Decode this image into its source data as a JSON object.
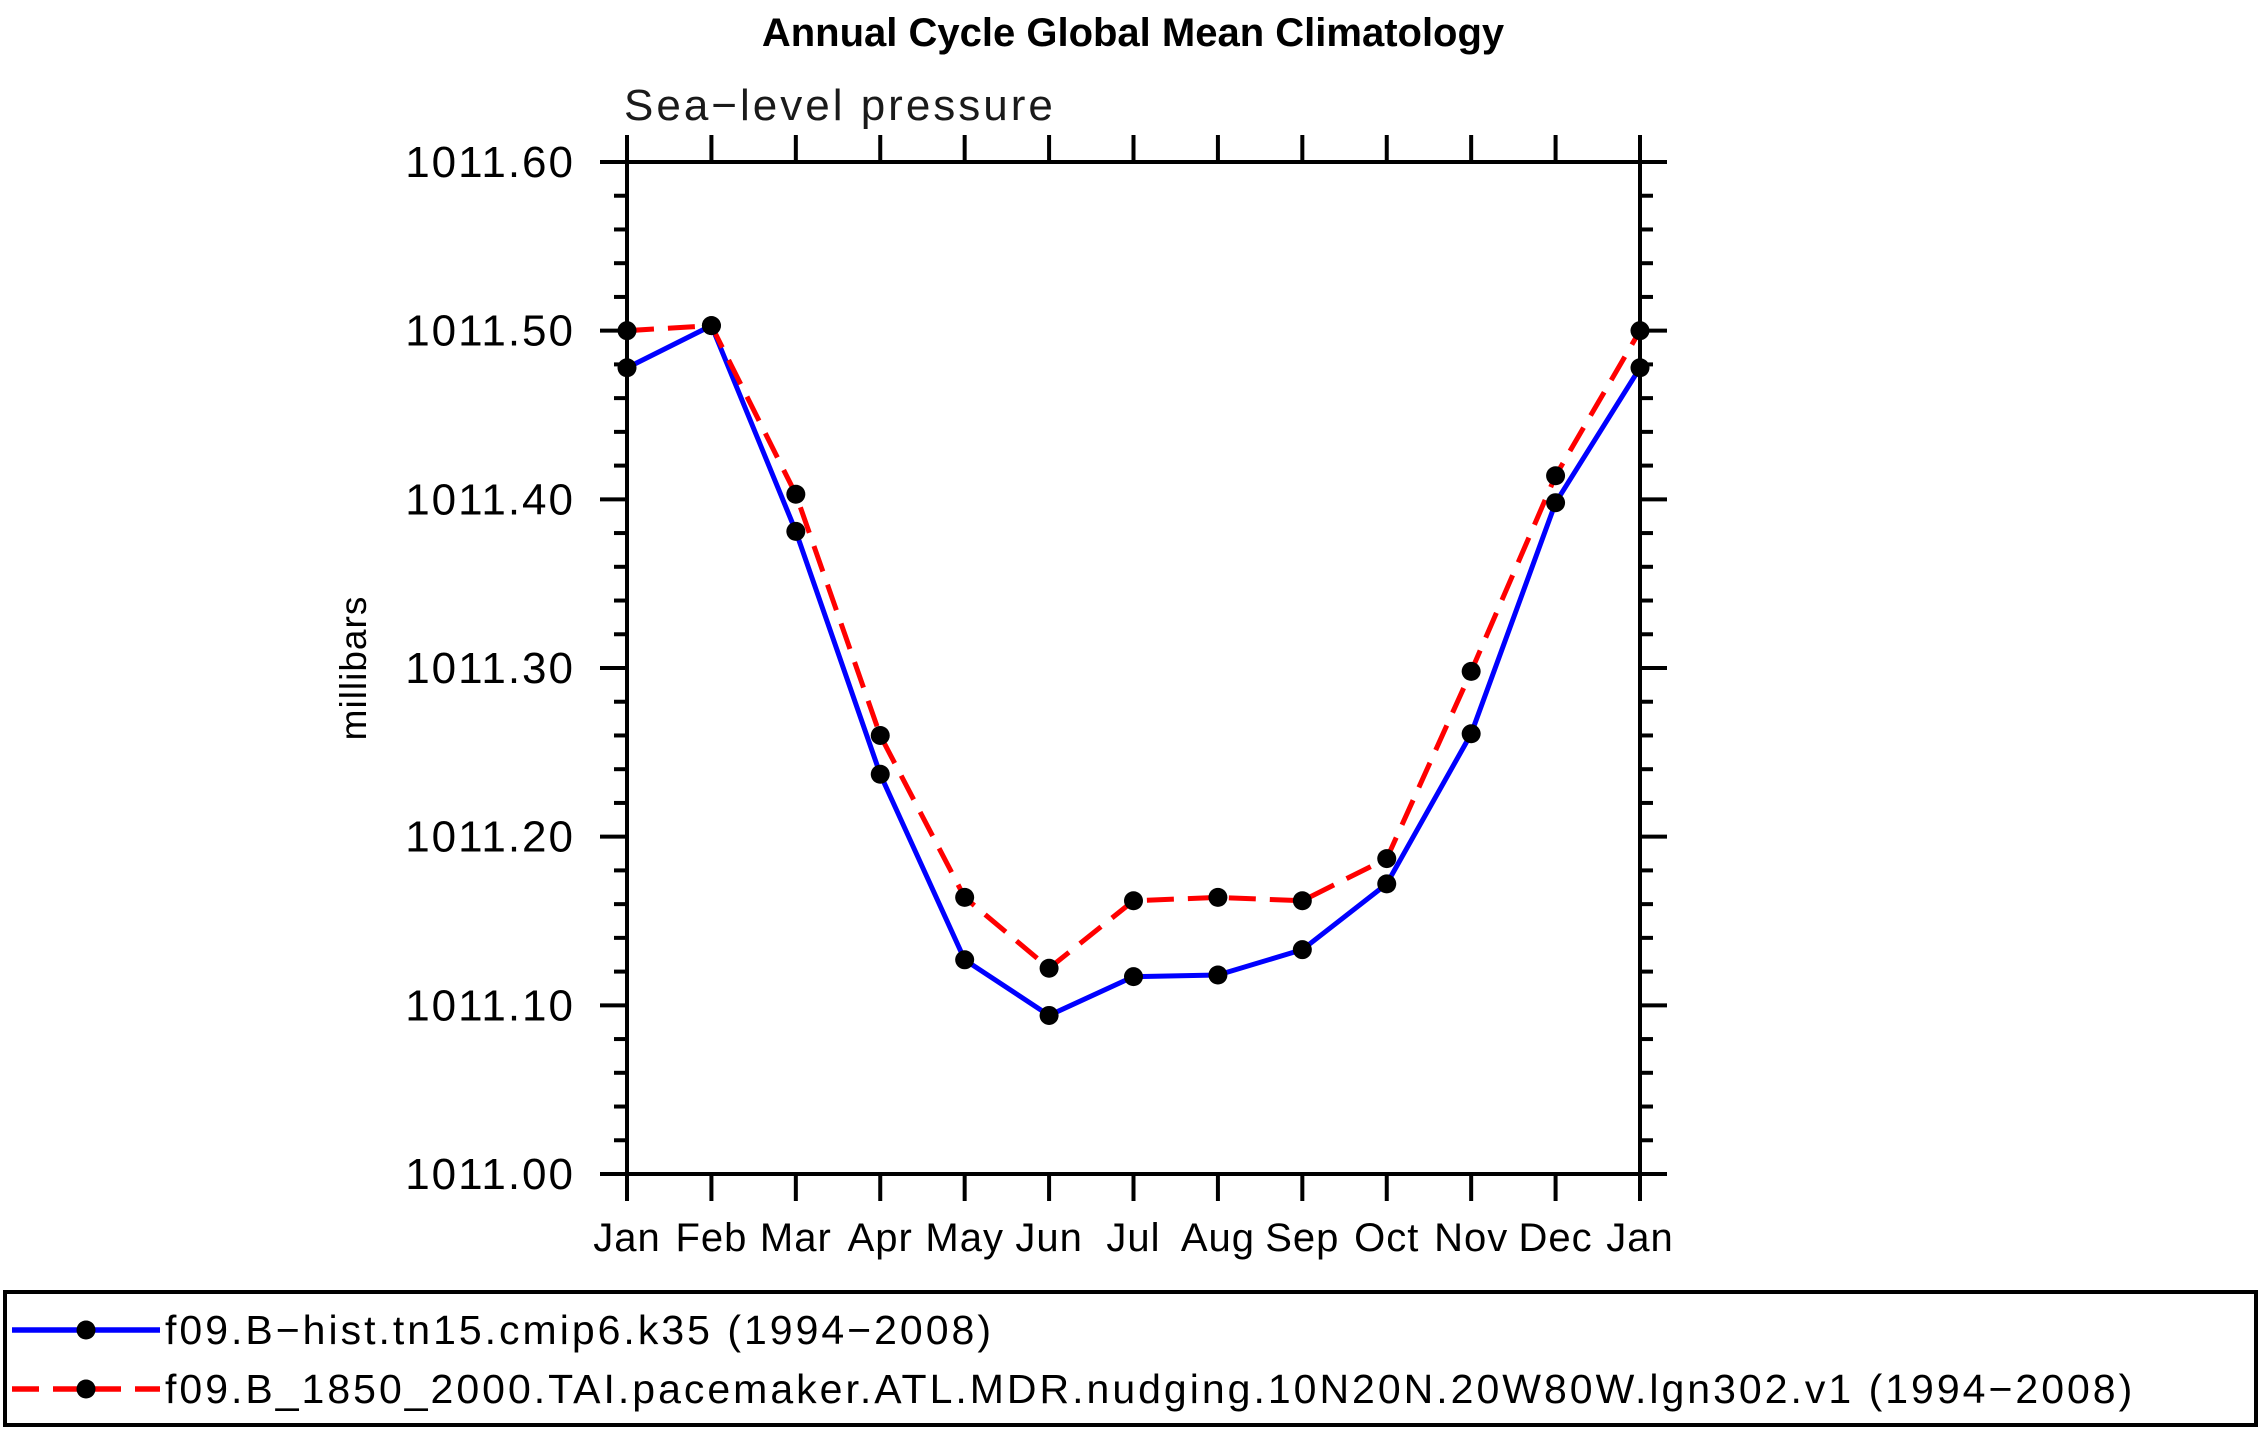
{
  "chart": {
    "title": "Annual Cycle Global Mean Climatology",
    "subtitle": "Sea−level pressure",
    "ylabel": "millibars"
  },
  "chart_data": {
    "type": "line",
    "title": "Annual Cycle Global Mean Climatology",
    "subtitle": "Sea−level pressure",
    "ylabel": "millibars",
    "xlabel": "",
    "categories": [
      "Jan",
      "Feb",
      "Mar",
      "Apr",
      "May",
      "Jun",
      "Jul",
      "Aug",
      "Sep",
      "Oct",
      "Nov",
      "Dec",
      "Jan"
    ],
    "series": [
      {
        "name": "f09.B−hist.tn15.cmip6.k35 (1994−2008)",
        "line_color": "#0000ff",
        "line_style": "solid",
        "marker": "filled-circle",
        "marker_color": "#000000",
        "values": [
          1011.478,
          1011.503,
          1011.381,
          1011.237,
          1011.127,
          1011.094,
          1011.117,
          1011.118,
          1011.133,
          1011.172,
          1011.261,
          1011.398,
          1011.478
        ]
      },
      {
        "name": "f09.B_1850_2000.TAI.pacemaker.ATL.MDR.nudging.10N20N.20W80W.lgn302.v1 (1994−2008)",
        "line_color": "#ff0000",
        "line_style": "dashed",
        "marker": "filled-circle",
        "marker_color": "#000000",
        "values": [
          1011.5,
          1011.503,
          1011.403,
          1011.26,
          1011.164,
          1011.122,
          1011.162,
          1011.164,
          1011.162,
          1011.187,
          1011.298,
          1011.414,
          1011.5
        ]
      }
    ],
    "ylim": [
      1011.0,
      1011.6
    ],
    "ytick_major_step": 0.1,
    "ytick_minor_step": 0.02,
    "ytick_decimals": 2,
    "grid": false,
    "legend_position": "bottom",
    "axis_color": "#000000",
    "background_color": "#ffffff"
  }
}
